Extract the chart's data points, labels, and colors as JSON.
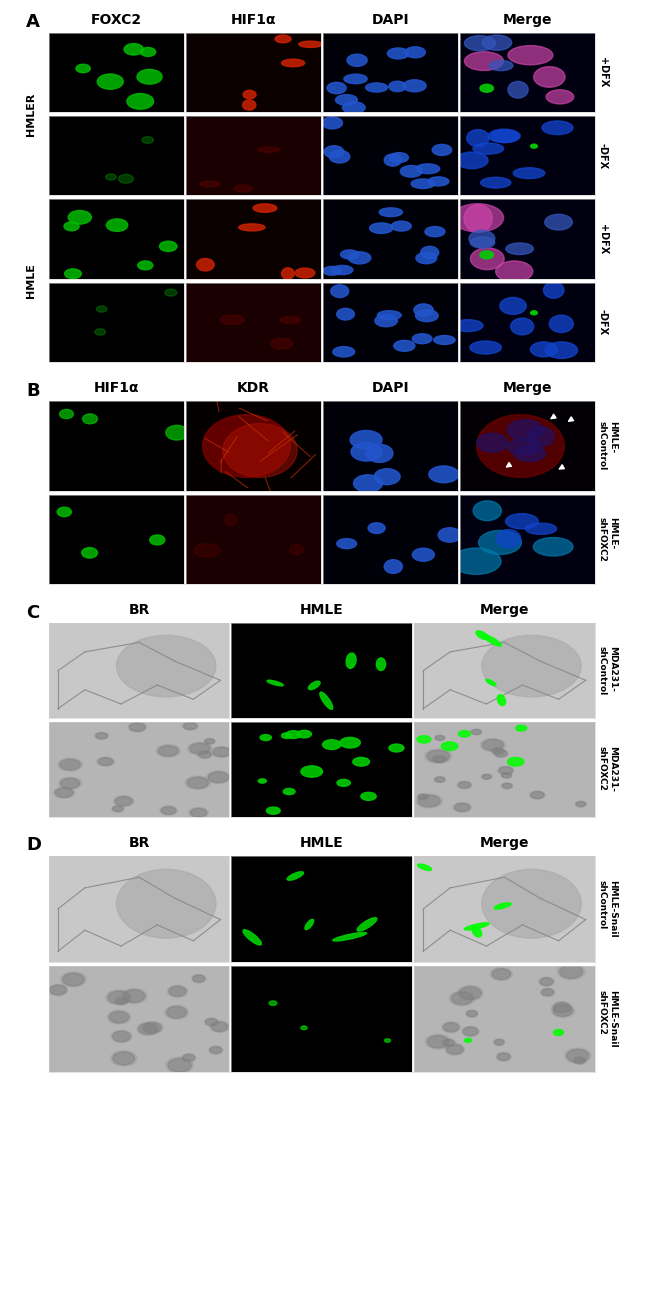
{
  "panel_A_label": "A",
  "panel_B_label": "B",
  "panel_C_label": "C",
  "panel_D_label": "D",
  "panel_A_col_headers": [
    "FOXC2",
    "HIF1α",
    "DAPI",
    "Merge"
  ],
  "panel_B_col_headers": [
    "HIF1α",
    "KDR",
    "DAPI",
    "Merge"
  ],
  "panel_C_col_headers": [
    "BR",
    "HMLE",
    "Merge"
  ],
  "panel_D_col_headers": [
    "BR",
    "HMLE",
    "Merge"
  ],
  "panel_A_row_labels": [
    "+DFX",
    "-DFX",
    "+DFX",
    "-DFX"
  ],
  "panel_A_row_group_labels": [
    "HMLER",
    "HMLE"
  ],
  "panel_B_row_labels": [
    "HMLE-\nshControl",
    "HMLE-\nshFOXC2"
  ],
  "panel_C_row_labels": [
    "MDA231-\nshControl",
    "MDA231-\nshFOXC2"
  ],
  "panel_D_row_labels": [
    "HMLE-Snail\nshControl",
    "HMLE-Snail\nshFOXC2"
  ],
  "bg_color": "#ffffff",
  "header_fontsize": 10,
  "panel_label_fontsize": 13,
  "row_label_fontsize": 7,
  "group_label_fontsize": 8
}
